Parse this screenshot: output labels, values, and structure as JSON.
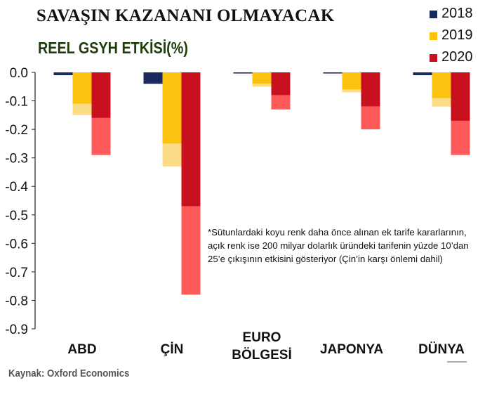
{
  "header": {
    "title": "SAVAŞIN KAZANANI OLMAYACAK",
    "subtitle": "REEL GSYH ETKİSİ(%)"
  },
  "legend": {
    "items": [
      {
        "label": "2018",
        "color": "#1b2a5e"
      },
      {
        "label": "2019",
        "color": "#fcc210"
      },
      {
        "label": "2020",
        "color": "#c8101e"
      }
    ]
  },
  "note": "*Sütunlardaki koyu renk daha önce alınan ek tarife kararlarının, açık renk ise 200 milyar dolarlık üründeki tarifenin yüzde 10’dan 25’e çıkışının etkisini gösteriyor (Çin’in karşı önlemi dahil)",
  "source": "Kaynak: Oxford Economics",
  "chart_data": {
    "type": "bar",
    "stacked_components": true,
    "categories": [
      [
        "ABD"
      ],
      [
        "ÇİN"
      ],
      [
        "EURO",
        "BÖLGESİ"
      ],
      [
        "JAPONYA"
      ],
      [
        "DÜNYA"
      ]
    ],
    "series": [
      {
        "name": "2018",
        "color": "#1b2a5e",
        "light_color": "#1b2a5e",
        "dark": [
          -0.01,
          -0.04,
          0.0,
          0.0,
          -0.01
        ],
        "light": [
          0,
          0,
          0,
          0,
          0
        ]
      },
      {
        "name": "2019",
        "color": "#fcc210",
        "light_color": "#fddc87",
        "dark": [
          -0.11,
          -0.25,
          -0.04,
          -0.06,
          -0.09
        ],
        "light": [
          -0.04,
          -0.08,
          -0.01,
          -0.01,
          -0.03
        ]
      },
      {
        "name": "2020",
        "color": "#c8101e",
        "light_color": "#ff5a5a",
        "dark": [
          -0.16,
          -0.47,
          -0.08,
          -0.12,
          -0.17
        ],
        "light": [
          -0.13,
          -0.31,
          -0.05,
          -0.08,
          -0.12
        ]
      }
    ],
    "ylim": [
      -0.9,
      0.0
    ],
    "yticks": [
      "0.0",
      "-0.1",
      "-0.2",
      "-0.3",
      "-0.4",
      "-0.5",
      "-0.6",
      "-0.7",
      "-0.8",
      "-0.9"
    ],
    "grid": false,
    "legend_position": "top-right"
  }
}
